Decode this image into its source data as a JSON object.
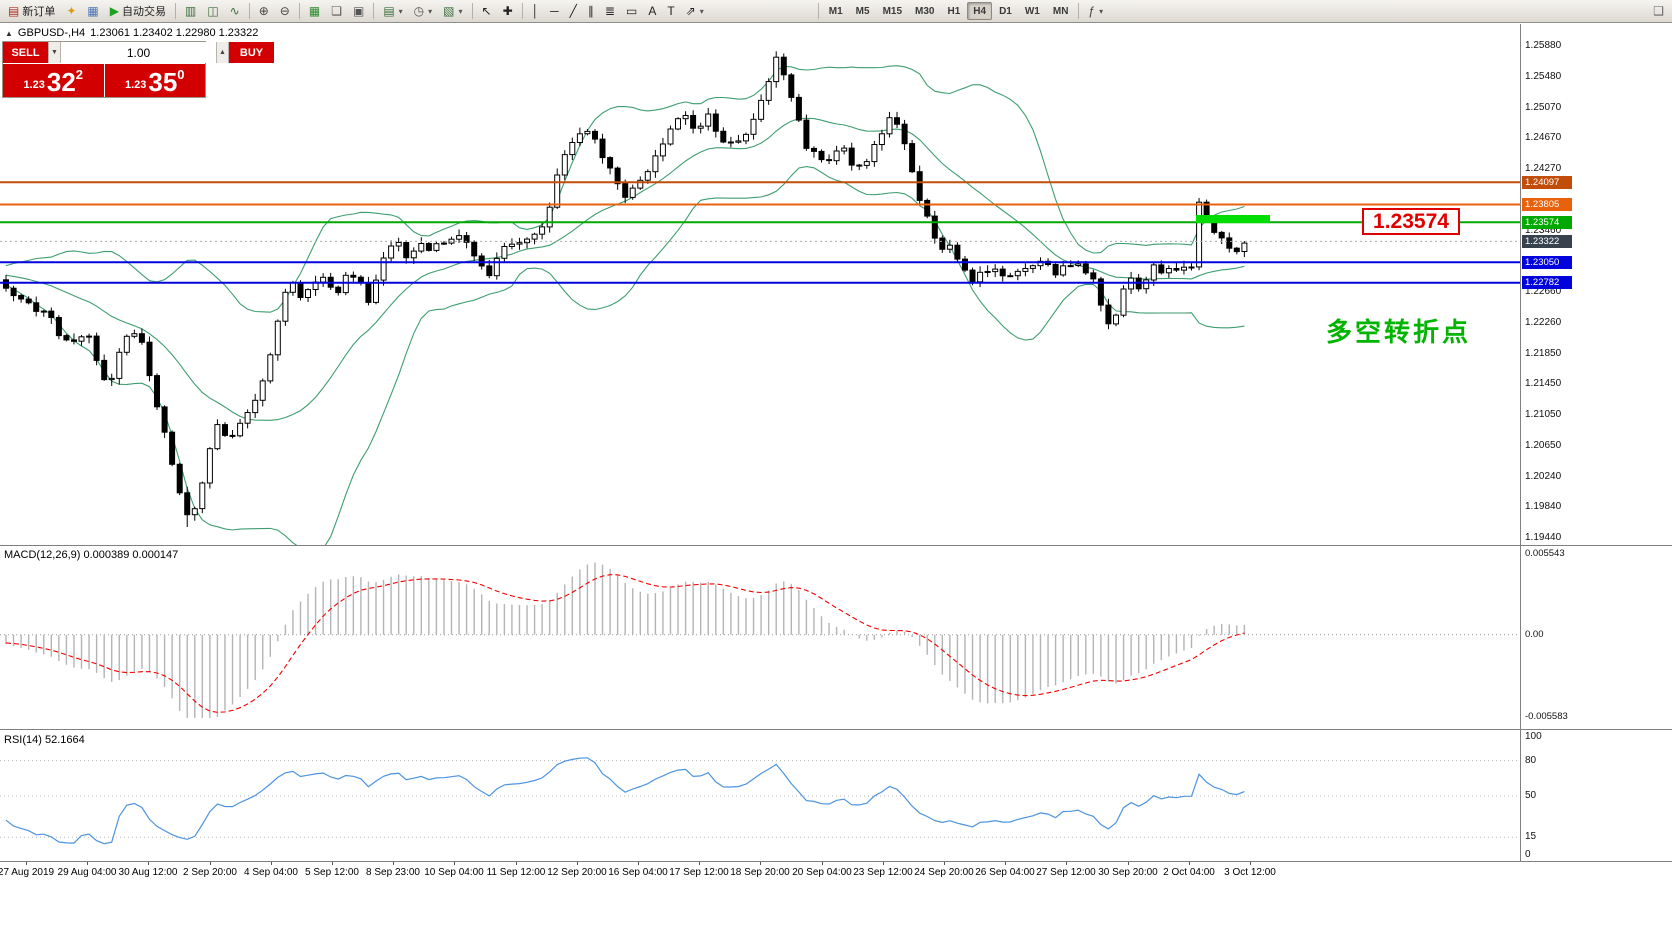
{
  "toolbar": {
    "groups": [
      {
        "name": "trade-group",
        "items": [
          {
            "name": "new-order-button",
            "glyph": "▤",
            "glyph_color": "#b03020",
            "label": "新订单"
          },
          {
            "name": "metaeditor-button",
            "glyph": "✦",
            "glyph_color": "#d4a017"
          },
          {
            "name": "market-watch-button",
            "glyph": "▦",
            "glyph_color": "#4a76b8"
          },
          {
            "name": "autotrading-button",
            "glyph": "▶",
            "glyph_color": "#1fa11f",
            "label": "自动交易"
          }
        ]
      },
      {
        "name": "chart-type-group",
        "items": [
          {
            "name": "bar-chart-button",
            "glyph": "▥",
            "glyph_color": "#3c6e3c"
          },
          {
            "name": "candlestick-chart-button",
            "glyph": "◫",
            "glyph_color": "#3c6e3c"
          },
          {
            "name": "line-chart-button",
            "glyph": "∿",
            "glyph_color": "#3c6e3c"
          }
        ]
      },
      {
        "name": "zoom-group",
        "items": [
          {
            "name": "zoom-in-button",
            "glyph": "⊕",
            "glyph_color": "#444"
          },
          {
            "name": "zoom-out-button",
            "glyph": "⊖",
            "glyph_color": "#444"
          }
        ]
      },
      {
        "name": "window-group",
        "items": [
          {
            "name": "tile-windows-button",
            "glyph": "▦",
            "glyph_color": "#2e8b2e"
          },
          {
            "name": "cascade-windows-button",
            "glyph": "❏",
            "glyph_color": "#555"
          },
          {
            "name": "arrange-windows-button",
            "glyph": "▣",
            "glyph_color": "#555"
          }
        ]
      },
      {
        "name": "chart-tools-group",
        "items": [
          {
            "name": "new-chart-button",
            "glyph": "▤",
            "glyph_color": "#3c6e3c",
            "dropdown": true
          },
          {
            "name": "profiles-button",
            "glyph": "◷",
            "glyph_color": "#555",
            "dropdown": true
          },
          {
            "name": "chart-settings-button",
            "glyph": "▧",
            "glyph_color": "#3c6e3c",
            "dropdown": true
          }
        ]
      },
      {
        "name": "cursor-group",
        "items": [
          {
            "name": "cursor-button",
            "glyph": "↖",
            "glyph_color": "#222"
          },
          {
            "name": "crosshair-button",
            "glyph": "✚",
            "glyph_color": "#222"
          }
        ]
      },
      {
        "name": "draw-group",
        "items": [
          {
            "name": "vertical-line-button",
            "glyph": "│",
            "glyph_color": "#222"
          },
          {
            "name": "horizontal-line-button",
            "glyph": "─",
            "glyph_color": "#222"
          },
          {
            "name": "trendline-button",
            "glyph": "╱",
            "glyph_color": "#222"
          },
          {
            "name": "channel-button",
            "glyph": "∥",
            "glyph_color": "#222"
          },
          {
            "name": "fibonacci-button",
            "glyph": "≣",
            "glyph_color": "#222"
          },
          {
            "name": "shapes-button",
            "glyph": "▭",
            "glyph_color": "#222"
          },
          {
            "name": "text-button",
            "glyph": "A",
            "glyph_color": "#222"
          },
          {
            "name": "text-label-button",
            "glyph": "T",
            "glyph_color": "#222"
          },
          {
            "name": "arrows-button",
            "glyph": "⇗",
            "glyph_color": "#222",
            "dropdown": true
          }
        ]
      }
    ],
    "timeframes": [
      "M1",
      "M5",
      "M15",
      "M30",
      "H1",
      "H4",
      "D1",
      "W1",
      "MN"
    ],
    "active_timeframe": "H4",
    "right_items": [
      {
        "name": "indicator-list-button",
        "glyph": "ƒ",
        "glyph_color": "#444",
        "dropdown": true
      }
    ],
    "corner_items": [
      {
        "name": "community-button",
        "glyph": "❑",
        "glyph_color": "#666"
      }
    ]
  },
  "chart": {
    "symbol_marker": "▲",
    "symbol_title": "GBPUSD-,H4",
    "ohlc_values": "1.23061 1.23402 1.22980 1.23322",
    "trade_panel": {
      "sell_label": "SELL",
      "buy_label": "BUY",
      "volume": "1.00",
      "spinner_down_icon": "▼",
      "spinner_up_icon": "▲",
      "sell_price_prefix": "1.23",
      "sell_price_big": "32",
      "sell_price_sup": "2",
      "buy_price_prefix": "1.23",
      "buy_price_big": "35",
      "buy_price_sup": "0",
      "button_color": "#d20000"
    },
    "price_axis": {
      "top_price": 1.2588,
      "bottom_price": 1.1944,
      "ticks": [
        "1.25880",
        "1.25480",
        "1.25070",
        "1.24670",
        "1.24270",
        "1.23460",
        "1.22660",
        "1.22260",
        "1.21850",
        "1.21450",
        "1.21050",
        "1.20650",
        "1.20240",
        "1.19840",
        "1.19440"
      ]
    },
    "levels": [
      {
        "label": "1.24097",
        "price": 1.24097,
        "line_color": "#c24d0a",
        "tag_color": "#c24d0a",
        "line_width": 2
      },
      {
        "label": "1.23805",
        "price": 1.23805,
        "line_color": "#e8610d",
        "tag_color": "#e8610d",
        "line_width": 2
      },
      {
        "label": "1.23574",
        "price": 1.23574,
        "line_color": "#00a800",
        "tag_color": "#00a800",
        "line_width": 2
      },
      {
        "label": "1.23322",
        "price": 1.23322,
        "line_color": "#aaaaaa",
        "tag_color": "#38424e",
        "line_width": 0,
        "current": true
      },
      {
        "label": "1.23050",
        "price": 1.2305,
        "line_color": "#0202dd",
        "tag_color": "#0202dd",
        "line_width": 2
      },
      {
        "label": "1.22782",
        "price": 1.22782,
        "line_color": "#0202dd",
        "tag_color": "#0202dd",
        "line_width": 2
      }
    ],
    "highlight_color": "#00dd00",
    "callout_text": "1.23574",
    "annotation_text": "多空转折点",
    "annotation_color": "#00b400"
  },
  "macd_panel": {
    "label": "MACD(12,26,9) 0.000389 0.000147",
    "scale_top": "0.005543",
    "scale_mid": "0.00",
    "scale_bottom": "-0.005583",
    "histogram_color": "#b4b4b4",
    "signal_color": "#f20000"
  },
  "rsi_panel": {
    "label": "RSI(14) 52.1664",
    "line_color": "#4b94e0",
    "scale_labels": [
      {
        "text": "100",
        "value": 100
      },
      {
        "text": "80",
        "value": 80
      },
      {
        "text": "50",
        "value": 50
      },
      {
        "text": "15",
        "value": 15
      },
      {
        "text": "0",
        "value": 0
      }
    ],
    "levels": [
      80,
      50,
      15
    ]
  },
  "dates": [
    "27 Aug 2019",
    "29 Aug 04:00",
    "30 Aug 12:00",
    "2 Sep 20:00",
    "4 Sep 04:00",
    "5 Sep 12:00",
    "8 Sep 23:00",
    "10 Sep 04:00",
    "11 Sep 12:00",
    "12 Sep 20:00",
    "16 Sep 04:00",
    "17 Sep 12:00",
    "18 Sep 20:00",
    "20 Sep 04:00",
    "23 Sep 12:00",
    "24 Sep 20:00",
    "26 Sep 04:00",
    "27 Sep 12:00",
    "30 Sep 20:00",
    "2 Oct 04:00",
    "3 Oct 12:00"
  ],
  "chart_data": {
    "type": "candlestick",
    "symbol": "GBPUSD",
    "timeframe": "H4",
    "price_top": 1.2588,
    "price_bottom": 1.1944,
    "candle_count": 165,
    "bollinger": {
      "period": 20,
      "deviation": 2,
      "color": "#3f9e6f"
    },
    "macd": {
      "fast": 12,
      "slow": 26,
      "signal_period": 9
    },
    "rsi": {
      "period": 14
    },
    "keypoints": [
      [
        0,
        1.2282
      ],
      [
        14,
        1.2262
      ],
      [
        30,
        1.2248
      ],
      [
        48,
        1.2238
      ],
      [
        62,
        1.2205
      ],
      [
        76,
        1.2196
      ],
      [
        88,
        1.2216
      ],
      [
        98,
        1.217
      ],
      [
        108,
        1.2142
      ],
      [
        118,
        1.218
      ],
      [
        130,
        1.2222
      ],
      [
        142,
        1.2198
      ],
      [
        152,
        1.2142
      ],
      [
        164,
        1.2082
      ],
      [
        176,
        1.2022
      ],
      [
        190,
        1.1963
      ],
      [
        198,
        1.1992
      ],
      [
        206,
        1.2042
      ],
      [
        216,
        1.2096
      ],
      [
        228,
        1.2076
      ],
      [
        240,
        1.209
      ],
      [
        252,
        1.2112
      ],
      [
        262,
        1.215
      ],
      [
        274,
        1.2205
      ],
      [
        288,
        1.2282
      ],
      [
        300,
        1.2262
      ],
      [
        312,
        1.2272
      ],
      [
        324,
        1.2282
      ],
      [
        336,
        1.2262
      ],
      [
        348,
        1.2296
      ],
      [
        360,
        1.2282
      ],
      [
        370,
        1.2252
      ],
      [
        378,
        1.2296
      ],
      [
        388,
        1.2322
      ],
      [
        398,
        1.233
      ],
      [
        408,
        1.2308
      ],
      [
        420,
        1.2326
      ],
      [
        432,
        1.2322
      ],
      [
        444,
        1.233
      ],
      [
        456,
        1.234
      ],
      [
        468,
        1.2326
      ],
      [
        478,
        1.2306
      ],
      [
        490,
        1.2288
      ],
      [
        500,
        1.232
      ],
      [
        512,
        1.233
      ],
      [
        524,
        1.2336
      ],
      [
        536,
        1.2344
      ],
      [
        546,
        1.2356
      ],
      [
        556,
        1.242
      ],
      [
        566,
        1.245
      ],
      [
        578,
        1.2468
      ],
      [
        590,
        1.2478
      ],
      [
        602,
        1.2442
      ],
      [
        614,
        1.2418
      ],
      [
        626,
        1.2388
      ],
      [
        638,
        1.2406
      ],
      [
        650,
        1.2432
      ],
      [
        662,
        1.2458
      ],
      [
        674,
        1.2488
      ],
      [
        684,
        1.2498
      ],
      [
        696,
        1.2478
      ],
      [
        708,
        1.2496
      ],
      [
        720,
        1.2468
      ],
      [
        734,
        1.246
      ],
      [
        748,
        1.2478
      ],
      [
        762,
        1.2522
      ],
      [
        776,
        1.2572
      ],
      [
        784,
        1.2552
      ],
      [
        794,
        1.2508
      ],
      [
        806,
        1.2456
      ],
      [
        818,
        1.2444
      ],
      [
        830,
        1.2442
      ],
      [
        842,
        1.246
      ],
      [
        854,
        1.2428
      ],
      [
        866,
        1.2438
      ],
      [
        878,
        1.2466
      ],
      [
        890,
        1.2496
      ],
      [
        900,
        1.2478
      ],
      [
        910,
        1.2432
      ],
      [
        920,
        1.2384
      ],
      [
        930,
        1.2352
      ],
      [
        940,
        1.2322
      ],
      [
        950,
        1.233
      ],
      [
        960,
        1.23
      ],
      [
        972,
        1.2282
      ],
      [
        984,
        1.2292
      ],
      [
        996,
        1.23
      ],
      [
        1008,
        1.2282
      ],
      [
        1020,
        1.229
      ],
      [
        1032,
        1.2302
      ],
      [
        1044,
        1.2308
      ],
      [
        1056,
        1.229
      ],
      [
        1068,
        1.2302
      ],
      [
        1080,
        1.2298
      ],
      [
        1092,
        1.2286
      ],
      [
        1104,
        1.2238
      ],
      [
        1112,
        1.2212
      ],
      [
        1122,
        1.2262
      ],
      [
        1132,
        1.2288
      ],
      [
        1142,
        1.2262
      ],
      [
        1152,
        1.23
      ],
      [
        1162,
        1.2288
      ],
      [
        1172,
        1.23
      ],
      [
        1182,
        1.2292
      ],
      [
        1192,
        1.2302
      ],
      [
        1200,
        1.2398
      ],
      [
        1208,
        1.2352
      ],
      [
        1218,
        1.2338
      ],
      [
        1228,
        1.2326
      ],
      [
        1238,
        1.2318
      ],
      [
        1246,
        1.2332
      ]
    ]
  }
}
